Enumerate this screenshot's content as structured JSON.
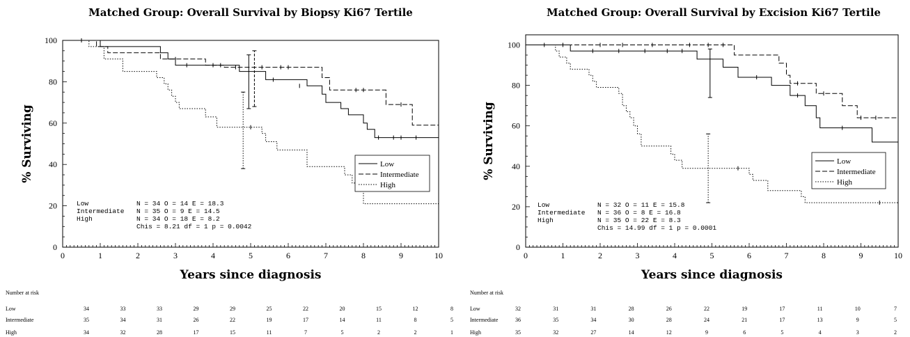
{
  "chart_data": [
    {
      "type": "line",
      "title": "Matched Group: Overall Survival by Biopsy Ki67 Tertile",
      "xlabel": "Years since diagnosis",
      "ylabel": "% Surviving",
      "xlim": [
        0,
        10
      ],
      "ylim": [
        0,
        100
      ],
      "x_ticks": [
        "0",
        "1",
        "2",
        "3",
        "4",
        "5",
        "6",
        "7",
        "8",
        "9",
        "10"
      ],
      "y_ticks": [
        "0",
        "20",
        "40",
        "60",
        "80",
        "100"
      ],
      "legend_position": "right-middle",
      "series": [
        {
          "name": "Low",
          "style": "solid",
          "steps": [
            [
              0,
              100
            ],
            [
              0.5,
              100
            ],
            [
              1.0,
              97
            ],
            [
              2.5,
              97
            ],
            [
              2.6,
              94
            ],
            [
              2.8,
              91
            ],
            [
              3.0,
              88
            ],
            [
              4.6,
              88
            ],
            [
              4.7,
              85
            ],
            [
              5.0,
              85
            ],
            [
              5.4,
              81
            ],
            [
              6.0,
              81
            ],
            [
              6.5,
              78
            ],
            [
              6.8,
              78
            ],
            [
              6.9,
              74
            ],
            [
              7.0,
              70
            ],
            [
              7.4,
              67
            ],
            [
              7.6,
              64
            ],
            [
              7.9,
              64
            ],
            [
              8.0,
              60
            ],
            [
              8.1,
              57
            ],
            [
              8.3,
              53
            ],
            [
              10,
              53
            ]
          ],
          "censors": [
            [
              3.3,
              88
            ],
            [
              4.2,
              88
            ],
            [
              5.6,
              81
            ],
            [
              6.3,
              78
            ],
            [
              8.4,
              53
            ],
            [
              8.8,
              53
            ],
            [
              9.0,
              53
            ],
            [
              9.4,
              53
            ]
          ],
          "ci": {
            "x": 4.95,
            "low": 67,
            "high": 93
          }
        },
        {
          "name": "Intermediate",
          "style": "dashed",
          "steps": [
            [
              0,
              100
            ],
            [
              0.8,
              100
            ],
            [
              0.9,
              97
            ],
            [
              1.1,
              97
            ],
            [
              1.2,
              94
            ],
            [
              2.0,
              94
            ],
            [
              2.5,
              94
            ],
            [
              2.6,
              91
            ],
            [
              3.6,
              91
            ],
            [
              3.8,
              88
            ],
            [
              4.2,
              88
            ],
            [
              4.3,
              87
            ],
            [
              6.4,
              87
            ],
            [
              6.8,
              87
            ],
            [
              6.9,
              82
            ],
            [
              7.1,
              76
            ],
            [
              8.5,
              76
            ],
            [
              8.6,
              69
            ],
            [
              9.2,
              69
            ],
            [
              9.3,
              59
            ],
            [
              10,
              59
            ]
          ],
          "censors": [
            [
              0.5,
              100
            ],
            [
              3.0,
              91
            ],
            [
              4.0,
              88
            ],
            [
              4.6,
              87
            ],
            [
              5.3,
              87
            ],
            [
              5.8,
              87
            ],
            [
              6.0,
              87
            ],
            [
              7.8,
              76
            ],
            [
              8.0,
              76
            ],
            [
              9.0,
              69
            ]
          ],
          "ci": {
            "x": 5.1,
            "low": 68,
            "high": 95
          }
        },
        {
          "name": "High",
          "style": "dotted",
          "steps": [
            [
              0,
              100
            ],
            [
              0.6,
              100
            ],
            [
              0.7,
              97
            ],
            [
              1.0,
              97
            ],
            [
              1.1,
              91
            ],
            [
              1.5,
              91
            ],
            [
              1.6,
              85
            ],
            [
              2.4,
              85
            ],
            [
              2.5,
              82
            ],
            [
              2.7,
              79
            ],
            [
              2.8,
              76
            ],
            [
              2.9,
              73
            ],
            [
              3.0,
              70
            ],
            [
              3.1,
              67
            ],
            [
              3.7,
              67
            ],
            [
              3.8,
              63
            ],
            [
              4.1,
              58
            ],
            [
              4.9,
              58
            ],
            [
              5.3,
              55
            ],
            [
              5.4,
              51
            ],
            [
              5.7,
              47
            ],
            [
              6.1,
              47
            ],
            [
              6.5,
              39
            ],
            [
              7.3,
              39
            ],
            [
              7.5,
              35
            ],
            [
              7.7,
              31
            ],
            [
              7.9,
              27
            ],
            [
              8.0,
              21
            ],
            [
              9.0,
              21
            ],
            [
              10,
              21
            ],
            [
              10,
              10
            ]
          ],
          "censors": [
            [
              5.0,
              58
            ]
          ],
          "ci": {
            "x": 4.8,
            "low": 38,
            "high": 75
          }
        }
      ],
      "stats": {
        "rows": [
          {
            "label": "Low",
            "stat": "N = 34  O = 14 E = 18.3"
          },
          {
            "label": "Intermediate",
            "stat": "N = 35  O = 9  E = 14.5"
          },
          {
            "label": "High",
            "stat": "N = 34  O = 18 E = 8.2"
          }
        ],
        "test": "Chis = 8.21  df = 1  p = 0.0042"
      },
      "risk_table": {
        "heading": "Number at risk",
        "rows": [
          {
            "label": "Low",
            "values": [
              "34",
              "33",
              "33",
              "29",
              "29",
              "25",
              "22",
              "20",
              "15",
              "12",
              "8"
            ]
          },
          {
            "label": "Intermediate",
            "values": [
              "35",
              "34",
              "31",
              "26",
              "22",
              "19",
              "17",
              "14",
              "11",
              "8",
              "5"
            ]
          },
          {
            "label": "High",
            "values": [
              "34",
              "32",
              "28",
              "17",
              "15",
              "11",
              "7",
              "5",
              "2",
              "2",
              "1"
            ]
          }
        ]
      }
    },
    {
      "type": "line",
      "title": "Matched Group: Overall Survival by Excision Ki67 Tertile",
      "xlabel": "Years since diagnosis",
      "ylabel": "% Surviving",
      "xlim": [
        0,
        10
      ],
      "ylim": [
        0,
        105
      ],
      "x_ticks": [
        "0",
        "1",
        "2",
        "3",
        "4",
        "5",
        "6",
        "7",
        "8",
        "9",
        "10"
      ],
      "y_ticks": [
        "0",
        "20",
        "40",
        "60",
        "80",
        "100"
      ],
      "legend_position": "right-middle",
      "series": [
        {
          "name": "Low",
          "style": "solid",
          "steps": [
            [
              0,
              100
            ],
            [
              1.2,
              100
            ],
            [
              1.2,
              97
            ],
            [
              4.5,
              97
            ],
            [
              4.6,
              93
            ],
            [
              5.2,
              93
            ],
            [
              5.3,
              89
            ],
            [
              5.6,
              89
            ],
            [
              5.7,
              84
            ],
            [
              6.5,
              84
            ],
            [
              6.6,
              80
            ],
            [
              7.0,
              80
            ],
            [
              7.1,
              75
            ],
            [
              7.4,
              75
            ],
            [
              7.5,
              70
            ],
            [
              7.7,
              70
            ],
            [
              7.8,
              64
            ],
            [
              7.9,
              59
            ],
            [
              9.2,
              59
            ],
            [
              9.3,
              52
            ],
            [
              10,
              52
            ]
          ],
          "censors": [
            [
              1.8,
              97
            ],
            [
              2.5,
              97
            ],
            [
              3.2,
              97
            ],
            [
              3.8,
              97
            ],
            [
              4.2,
              97
            ],
            [
              6.2,
              84
            ],
            [
              7.3,
              75
            ],
            [
              8.5,
              59
            ]
          ],
          "ci": {
            "x": 4.95,
            "low": 74,
            "high": 98
          }
        },
        {
          "name": "Intermediate",
          "style": "dashed",
          "steps": [
            [
              0,
              100
            ],
            [
              5.5,
              100
            ],
            [
              5.6,
              95
            ],
            [
              6.7,
              95
            ],
            [
              6.8,
              91
            ],
            [
              7.0,
              85
            ],
            [
              7.1,
              81
            ],
            [
              7.7,
              81
            ],
            [
              7.8,
              76
            ],
            [
              8.4,
              76
            ],
            [
              8.5,
              70
            ],
            [
              8.8,
              70
            ],
            [
              8.9,
              64
            ],
            [
              9.9,
              64
            ],
            [
              10,
              53
            ]
          ],
          "censors": [
            [
              0.5,
              100
            ],
            [
              1.0,
              100
            ],
            [
              2.0,
              100
            ],
            [
              2.6,
              100
            ],
            [
              3.4,
              100
            ],
            [
              4.4,
              100
            ],
            [
              4.9,
              100
            ],
            [
              5.3,
              100
            ],
            [
              7.3,
              81
            ],
            [
              8.0,
              76
            ],
            [
              9.0,
              64
            ],
            [
              9.4,
              64
            ]
          ],
          "ci": null
        },
        {
          "name": "High",
          "style": "dotted",
          "steps": [
            [
              0,
              100
            ],
            [
              0.7,
              100
            ],
            [
              0.8,
              97
            ],
            [
              0.9,
              94
            ],
            [
              1.1,
              91
            ],
            [
              1.2,
              88
            ],
            [
              1.6,
              88
            ],
            [
              1.7,
              85
            ],
            [
              1.8,
              82
            ],
            [
              1.9,
              79
            ],
            [
              2.4,
              79
            ],
            [
              2.5,
              76
            ],
            [
              2.6,
              70
            ],
            [
              2.7,
              67
            ],
            [
              2.8,
              64
            ],
            [
              2.9,
              60
            ],
            [
              3.0,
              56
            ],
            [
              3.1,
              50
            ],
            [
              3.8,
              50
            ],
            [
              3.9,
              46
            ],
            [
              4.0,
              43
            ],
            [
              4.2,
              39
            ],
            [
              5.9,
              39
            ],
            [
              6.0,
              36
            ],
            [
              6.1,
              33
            ],
            [
              6.5,
              28
            ],
            [
              7.3,
              28
            ],
            [
              7.4,
              25
            ],
            [
              7.5,
              22
            ],
            [
              10,
              22
            ]
          ],
          "censors": [
            [
              5.7,
              39
            ],
            [
              9.5,
              22
            ]
          ],
          "ci": {
            "x": 4.9,
            "low": 22,
            "high": 56
          }
        }
      ],
      "stats": {
        "rows": [
          {
            "label": "Low",
            "stat": "N = 32  O = 11 E = 15.8"
          },
          {
            "label": "Intermediate",
            "stat": "N = 36  O = 8  E = 16.8"
          },
          {
            "label": "High",
            "stat": "N = 35  O = 22 E = 8.3"
          }
        ],
        "test": "Chis = 14.99  df = 1  p = 0.0001"
      },
      "risk_table": {
        "heading": "Number at risk",
        "rows": [
          {
            "label": "Low",
            "values": [
              "32",
              "31",
              "31",
              "28",
              "26",
              "22",
              "19",
              "17",
              "11",
              "10",
              "7"
            ]
          },
          {
            "label": "Intermediate",
            "values": [
              "36",
              "35",
              "34",
              "30",
              "28",
              "24",
              "21",
              "17",
              "13",
              "9",
              "5"
            ]
          },
          {
            "label": "High",
            "values": [
              "35",
              "32",
              "27",
              "14",
              "12",
              "9",
              "6",
              "5",
              "4",
              "3",
              "2"
            ]
          }
        ]
      }
    }
  ]
}
